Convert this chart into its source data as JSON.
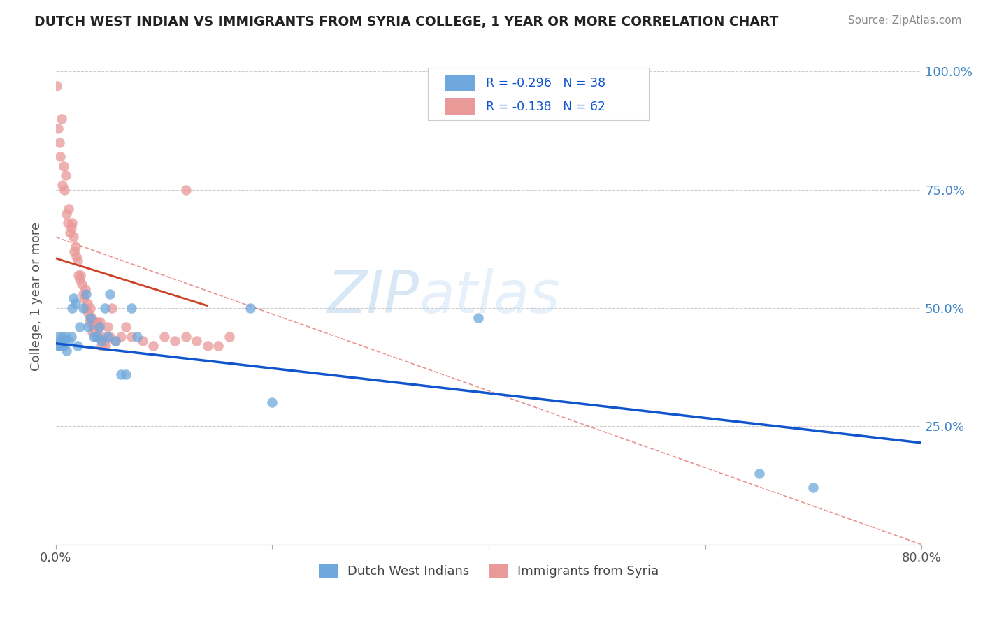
{
  "title": "DUTCH WEST INDIAN VS IMMIGRANTS FROM SYRIA COLLEGE, 1 YEAR OR MORE CORRELATION CHART",
  "source": "Source: ZipAtlas.com",
  "ylabel": "College, 1 year or more",
  "xlim": [
    0.0,
    0.8
  ],
  "ylim": [
    0.0,
    1.05
  ],
  "legend_r_blue": "-0.296",
  "legend_n_blue": "38",
  "legend_r_pink": "-0.138",
  "legend_n_pink": "62",
  "blue_color": "#6fa8dc",
  "pink_color": "#ea9999",
  "blue_line_color": "#1155cc",
  "pink_line_color": "#cc4125",
  "dashed_line_color": "#e06666",
  "watermark_zip": "ZIP",
  "watermark_atlas": "atlas",
  "blue_x": [
    0.001,
    0.002,
    0.003,
    0.004,
    0.005,
    0.006,
    0.007,
    0.008,
    0.009,
    0.01,
    0.012,
    0.014,
    0.015,
    0.016,
    0.018,
    0.02,
    0.022,
    0.025,
    0.028,
    0.03,
    0.032,
    0.035,
    0.038,
    0.04,
    0.042,
    0.045,
    0.048,
    0.05,
    0.055,
    0.06,
    0.065,
    0.07,
    0.075,
    0.18,
    0.2,
    0.39,
    0.65,
    0.7
  ],
  "blue_y": [
    0.42,
    0.44,
    0.42,
    0.43,
    0.42,
    0.44,
    0.42,
    0.43,
    0.44,
    0.41,
    0.43,
    0.44,
    0.5,
    0.52,
    0.51,
    0.42,
    0.46,
    0.5,
    0.53,
    0.46,
    0.48,
    0.44,
    0.44,
    0.46,
    0.43,
    0.5,
    0.44,
    0.53,
    0.43,
    0.36,
    0.36,
    0.5,
    0.44,
    0.5,
    0.3,
    0.48,
    0.15,
    0.12
  ],
  "pink_x": [
    0.001,
    0.002,
    0.003,
    0.004,
    0.005,
    0.006,
    0.007,
    0.008,
    0.009,
    0.01,
    0.011,
    0.012,
    0.013,
    0.014,
    0.015,
    0.016,
    0.017,
    0.018,
    0.019,
    0.02,
    0.021,
    0.022,
    0.023,
    0.024,
    0.025,
    0.026,
    0.027,
    0.028,
    0.029,
    0.03,
    0.031,
    0.032,
    0.033,
    0.034,
    0.035,
    0.036,
    0.037,
    0.038,
    0.039,
    0.04,
    0.041,
    0.042,
    0.043,
    0.045,
    0.046,
    0.048,
    0.05,
    0.052,
    0.055,
    0.06,
    0.065,
    0.07,
    0.08,
    0.09,
    0.1,
    0.11,
    0.12,
    0.13,
    0.14,
    0.15,
    0.16,
    0.12
  ],
  "pink_y": [
    0.97,
    0.88,
    0.85,
    0.82,
    0.9,
    0.76,
    0.8,
    0.75,
    0.78,
    0.7,
    0.68,
    0.71,
    0.66,
    0.67,
    0.68,
    0.65,
    0.62,
    0.63,
    0.61,
    0.6,
    0.57,
    0.56,
    0.57,
    0.55,
    0.53,
    0.52,
    0.54,
    0.5,
    0.51,
    0.49,
    0.47,
    0.5,
    0.48,
    0.45,
    0.46,
    0.47,
    0.44,
    0.47,
    0.44,
    0.46,
    0.47,
    0.42,
    0.44,
    0.43,
    0.42,
    0.46,
    0.44,
    0.5,
    0.43,
    0.44,
    0.46,
    0.44,
    0.43,
    0.42,
    0.44,
    0.43,
    0.44,
    0.43,
    0.42,
    0.42,
    0.44,
    0.75
  ],
  "blue_line_x0": 0.0,
  "blue_line_y0": 0.425,
  "blue_line_x1": 0.8,
  "blue_line_y1": 0.215,
  "pink_line_x0": 0.0,
  "pink_line_y0": 0.605,
  "pink_line_x1": 0.14,
  "pink_line_y1": 0.505,
  "dash_line_x0": 0.0,
  "dash_line_y0": 0.65,
  "dash_line_x1": 0.8,
  "dash_line_y1": 0.0
}
